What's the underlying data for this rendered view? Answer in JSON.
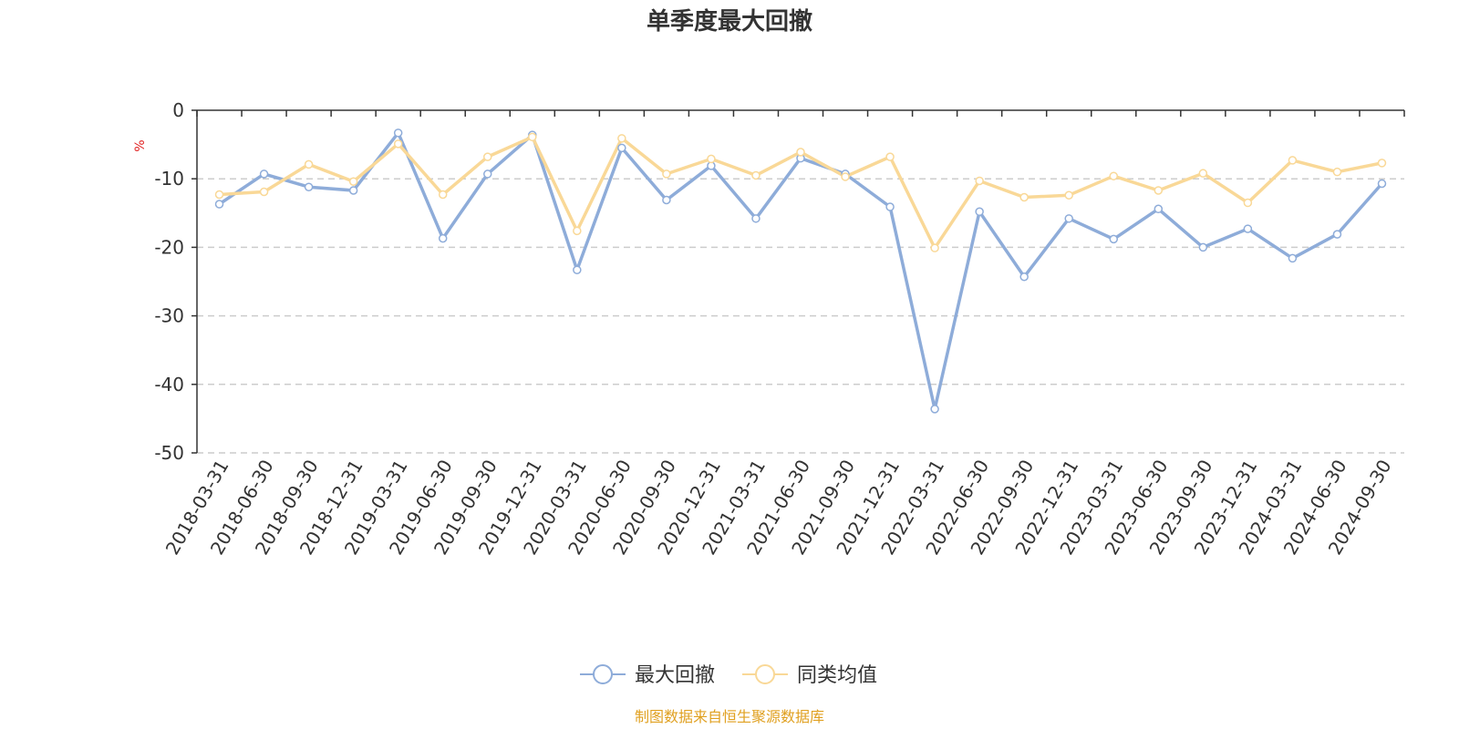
{
  "chart_data": {
    "type": "line",
    "title": "单季度最大回撤",
    "ylabel": "%",
    "xlabel": "",
    "ylim": [
      -50,
      0
    ],
    "yticks": [
      0,
      -10,
      -20,
      -30,
      -40,
      -50
    ],
    "ytick_labels": [
      "0",
      "-10",
      "-20",
      "-30",
      "-40",
      "-50"
    ],
    "grid": true,
    "legend_position": "bottom-center",
    "categories": [
      "2018-03-31",
      "2018-06-30",
      "2018-09-30",
      "2018-12-31",
      "2019-03-31",
      "2019-06-30",
      "2019-09-30",
      "2019-12-31",
      "2020-03-31",
      "2020-06-30",
      "2020-09-30",
      "2020-12-31",
      "2021-03-31",
      "2021-06-30",
      "2021-09-30",
      "2021-12-31",
      "2022-03-31",
      "2022-06-30",
      "2022-09-30",
      "2022-12-31",
      "2023-03-31",
      "2023-06-30",
      "2023-09-30",
      "2023-12-31",
      "2024-03-31",
      "2024-06-30",
      "2024-09-30"
    ],
    "series": [
      {
        "name": "最大回撤",
        "color": "#8eacd9",
        "values": [
          -13.7,
          -9.3,
          -11.2,
          -11.7,
          -3.3,
          -18.7,
          -9.3,
          -3.6,
          -23.3,
          -5.5,
          -13.1,
          -8.1,
          -15.8,
          -7.0,
          -9.3,
          -14.1,
          -43.6,
          -14.8,
          -24.3,
          -15.8,
          -18.8,
          -14.4,
          -20.0,
          -17.3,
          -21.6,
          -18.1,
          -10.7
        ]
      },
      {
        "name": "同类均值",
        "color": "#f9d897",
        "values": [
          -12.3,
          -11.9,
          -7.9,
          -10.4,
          -4.9,
          -12.3,
          -6.8,
          -3.9,
          -17.6,
          -4.1,
          -9.3,
          -7.1,
          -9.5,
          -6.1,
          -9.7,
          -6.8,
          -20.1,
          -10.3,
          -12.7,
          -12.4,
          -9.6,
          -11.7,
          -9.2,
          -13.5,
          -7.3,
          -9.0,
          -7.7
        ]
      }
    ]
  },
  "footer": {
    "source": "制图数据来自恒生聚源数据库",
    "source_color": "#e0a020"
  },
  "colors": {
    "unit_label": "#e02020",
    "grid": "#cccccc",
    "axis": "#333333",
    "text": "#333333"
  }
}
